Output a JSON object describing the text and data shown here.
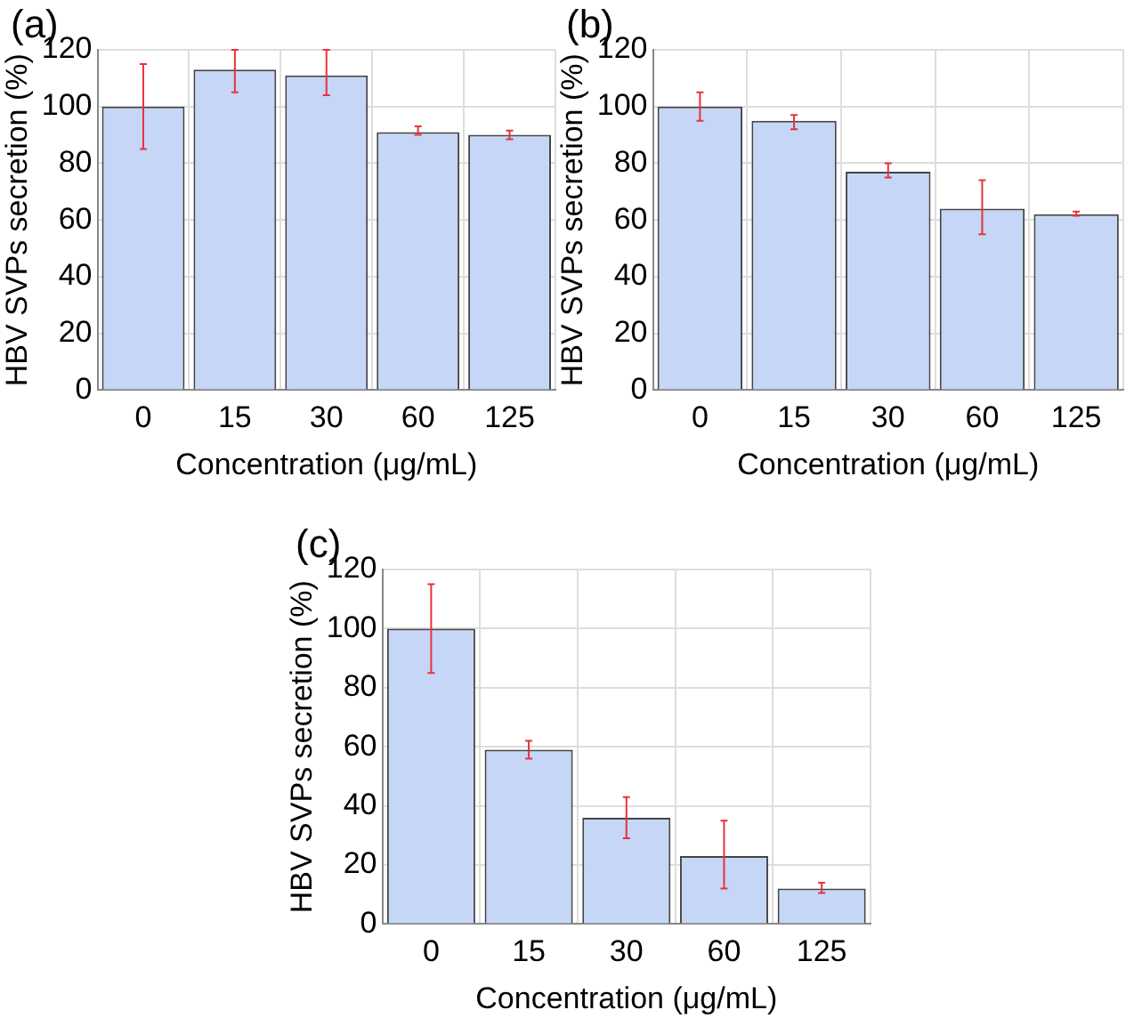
{
  "chart_data": [
    {
      "type": "bar",
      "title": "(a)",
      "xlabel": "Concentration (μg/mL)",
      "ylabel": "HBV SVPs secretion (%)",
      "categories": [
        "0",
        "15",
        "30",
        "60",
        "125"
      ],
      "values": [
        100,
        113,
        111,
        91,
        90
      ],
      "errors": [
        [
          85,
          115
        ],
        [
          105,
          120
        ],
        [
          104,
          120
        ],
        [
          90,
          93
        ],
        [
          88.5,
          91.5
        ]
      ],
      "color": "#c6d6f6",
      "ylim": [
        0,
        120
      ],
      "yticks": [
        0,
        20,
        40,
        60,
        80,
        100,
        120
      ],
      "grid": true
    },
    {
      "type": "bar",
      "title": "(b)",
      "xlabel": "Concentration (μg/mL)",
      "ylabel": "HBV SVPs secretion (%)",
      "categories": [
        "0",
        "15",
        "30",
        "60",
        "125"
      ],
      "values": [
        100,
        95,
        77,
        64,
        62
      ],
      "errors": [
        [
          95,
          105
        ],
        [
          92,
          97
        ],
        [
          75,
          80
        ],
        [
          55,
          74
        ],
        [
          61.5,
          63
        ]
      ],
      "color": "#c6d6f6",
      "ylim": [
        0,
        120
      ],
      "yticks": [
        0,
        20,
        40,
        60,
        80,
        100,
        120
      ],
      "grid": true
    },
    {
      "type": "bar",
      "title": "(c)",
      "xlabel": "Concentration (μg/mL)",
      "ylabel": "HBV SVPs secretion (%)",
      "categories": [
        "0",
        "15",
        "30",
        "60",
        "125"
      ],
      "values": [
        100,
        59,
        36,
        23,
        12
      ],
      "errors": [
        [
          85,
          115
        ],
        [
          56,
          62
        ],
        [
          29,
          43
        ],
        [
          12,
          35
        ],
        [
          10.5,
          14
        ]
      ],
      "color": "#c6d6f6",
      "ylim": [
        0,
        120
      ],
      "yticks": [
        0,
        20,
        40,
        60,
        80,
        100,
        120
      ],
      "grid": true
    }
  ]
}
